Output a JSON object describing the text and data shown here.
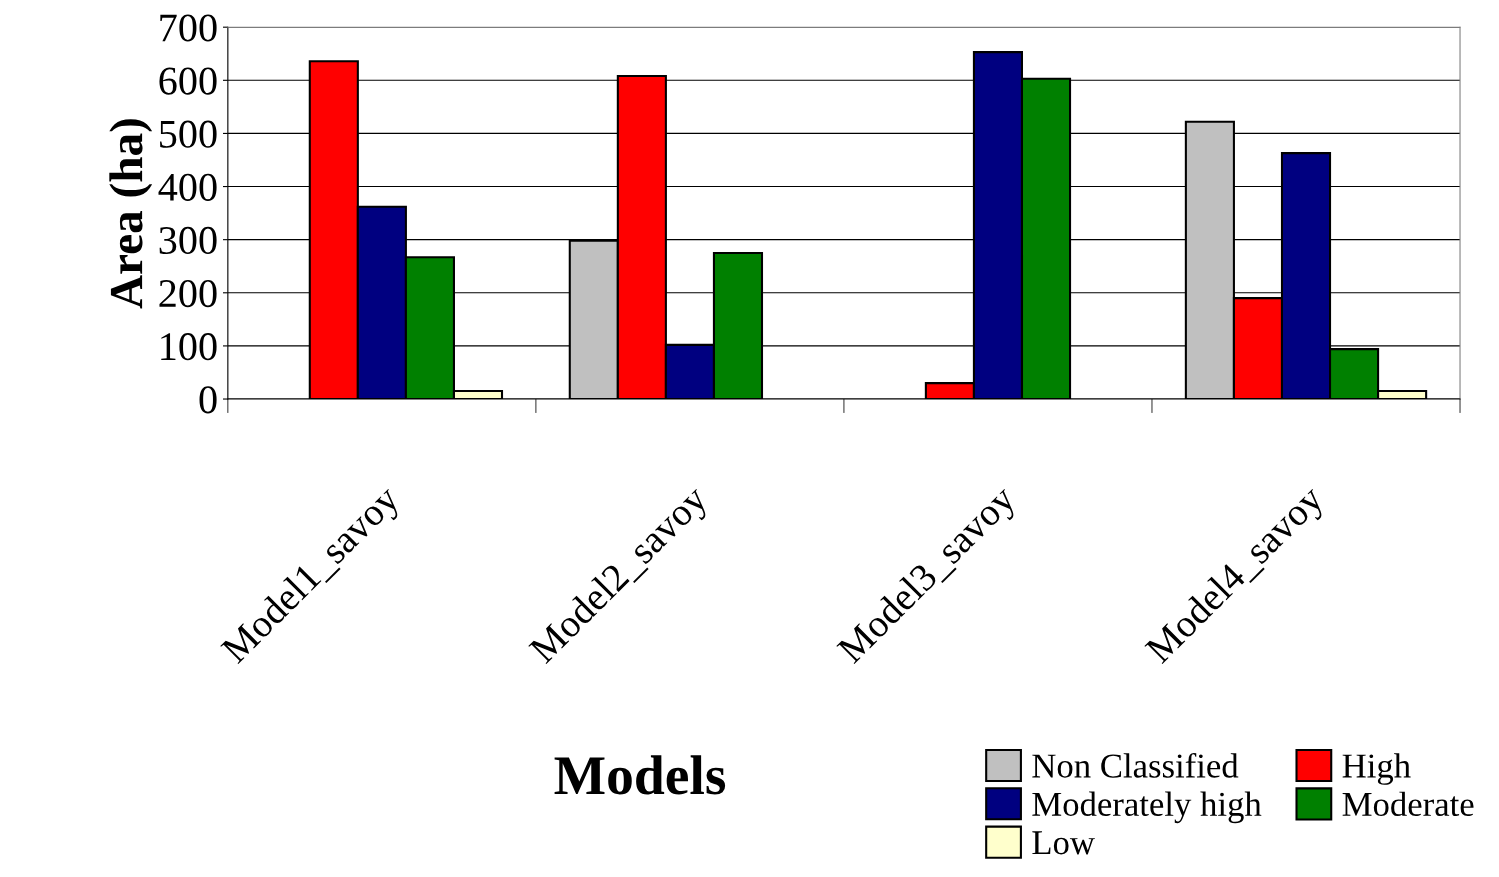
{
  "chart_data": {
    "type": "bar",
    "xlabel": "Models",
    "ylabel": "Area (ha)",
    "categories": [
      "Model1_savoy",
      "Model2_savoy",
      "Model3_savoy",
      "Model4_savoy"
    ],
    "series": [
      {
        "name": "Non Classified",
        "color": "#c0c0c0",
        "values": [
          null,
          298,
          null,
          522
        ]
      },
      {
        "name": "High",
        "color": "#ff0000",
        "values": [
          636,
          608,
          30,
          190
        ]
      },
      {
        "name": "Moderately high",
        "color": "#000080",
        "values": [
          362,
          102,
          653,
          463
        ]
      },
      {
        "name": "Moderate",
        "color": "#008000",
        "values": [
          267,
          275,
          603,
          94
        ]
      },
      {
        "name": "Low",
        "color": "#ffffcc",
        "values": [
          15,
          null,
          null,
          15
        ]
      }
    ],
    "ylim": [
      0,
      700
    ],
    "yticks": [
      0,
      100,
      200,
      300,
      400,
      500,
      600,
      700
    ],
    "grid": "y",
    "legend": "bottom right"
  }
}
